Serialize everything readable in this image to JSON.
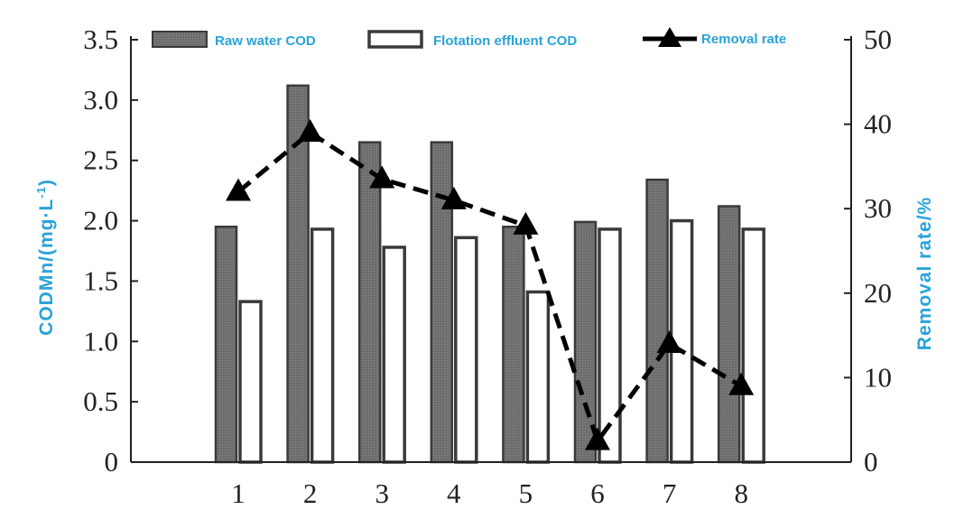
{
  "chart_data": {
    "type": "bar",
    "categories": [
      "1",
      "2",
      "3",
      "4",
      "5",
      "6",
      "7",
      "8"
    ],
    "series": [
      {
        "name": "Raw water COD",
        "kind": "bar",
        "axis": "left",
        "fill": "#6e6e6e",
        "values": [
          1.95,
          3.12,
          2.65,
          2.65,
          1.95,
          1.99,
          2.34,
          2.12
        ]
      },
      {
        "name": "Flotation effluent COD",
        "kind": "bar",
        "axis": "left",
        "fill": "#ffffff",
        "values": [
          1.33,
          1.93,
          1.78,
          1.86,
          1.41,
          1.93,
          2.0,
          1.93
        ]
      },
      {
        "name": "Removal rate",
        "kind": "line",
        "axis": "right",
        "style": "dashed",
        "marker": "triangle",
        "color": "#000000",
        "values": [
          32.0,
          39.0,
          33.5,
          31.0,
          28.0,
          2.5,
          14.0,
          9.0
        ]
      }
    ],
    "ylabel_left": "CODMn/(mg·L",
    "ylabel_left_sup": "-1",
    "ylabel_left_close": ")",
    "ylabel_right": "Removal rate/%",
    "ylim_left": [
      0,
      3.5
    ],
    "ylim_right": [
      0,
      50
    ],
    "yticks_left": [
      "0",
      "0.5",
      "1.0",
      "1.5",
      "2.0",
      "2.5",
      "3.0",
      "3.5"
    ],
    "yticks_right": [
      "0",
      "10",
      "20",
      "30",
      "40",
      "50"
    ],
    "legend_position": "top",
    "grid": false,
    "label_color": "#2aa3d8"
  }
}
